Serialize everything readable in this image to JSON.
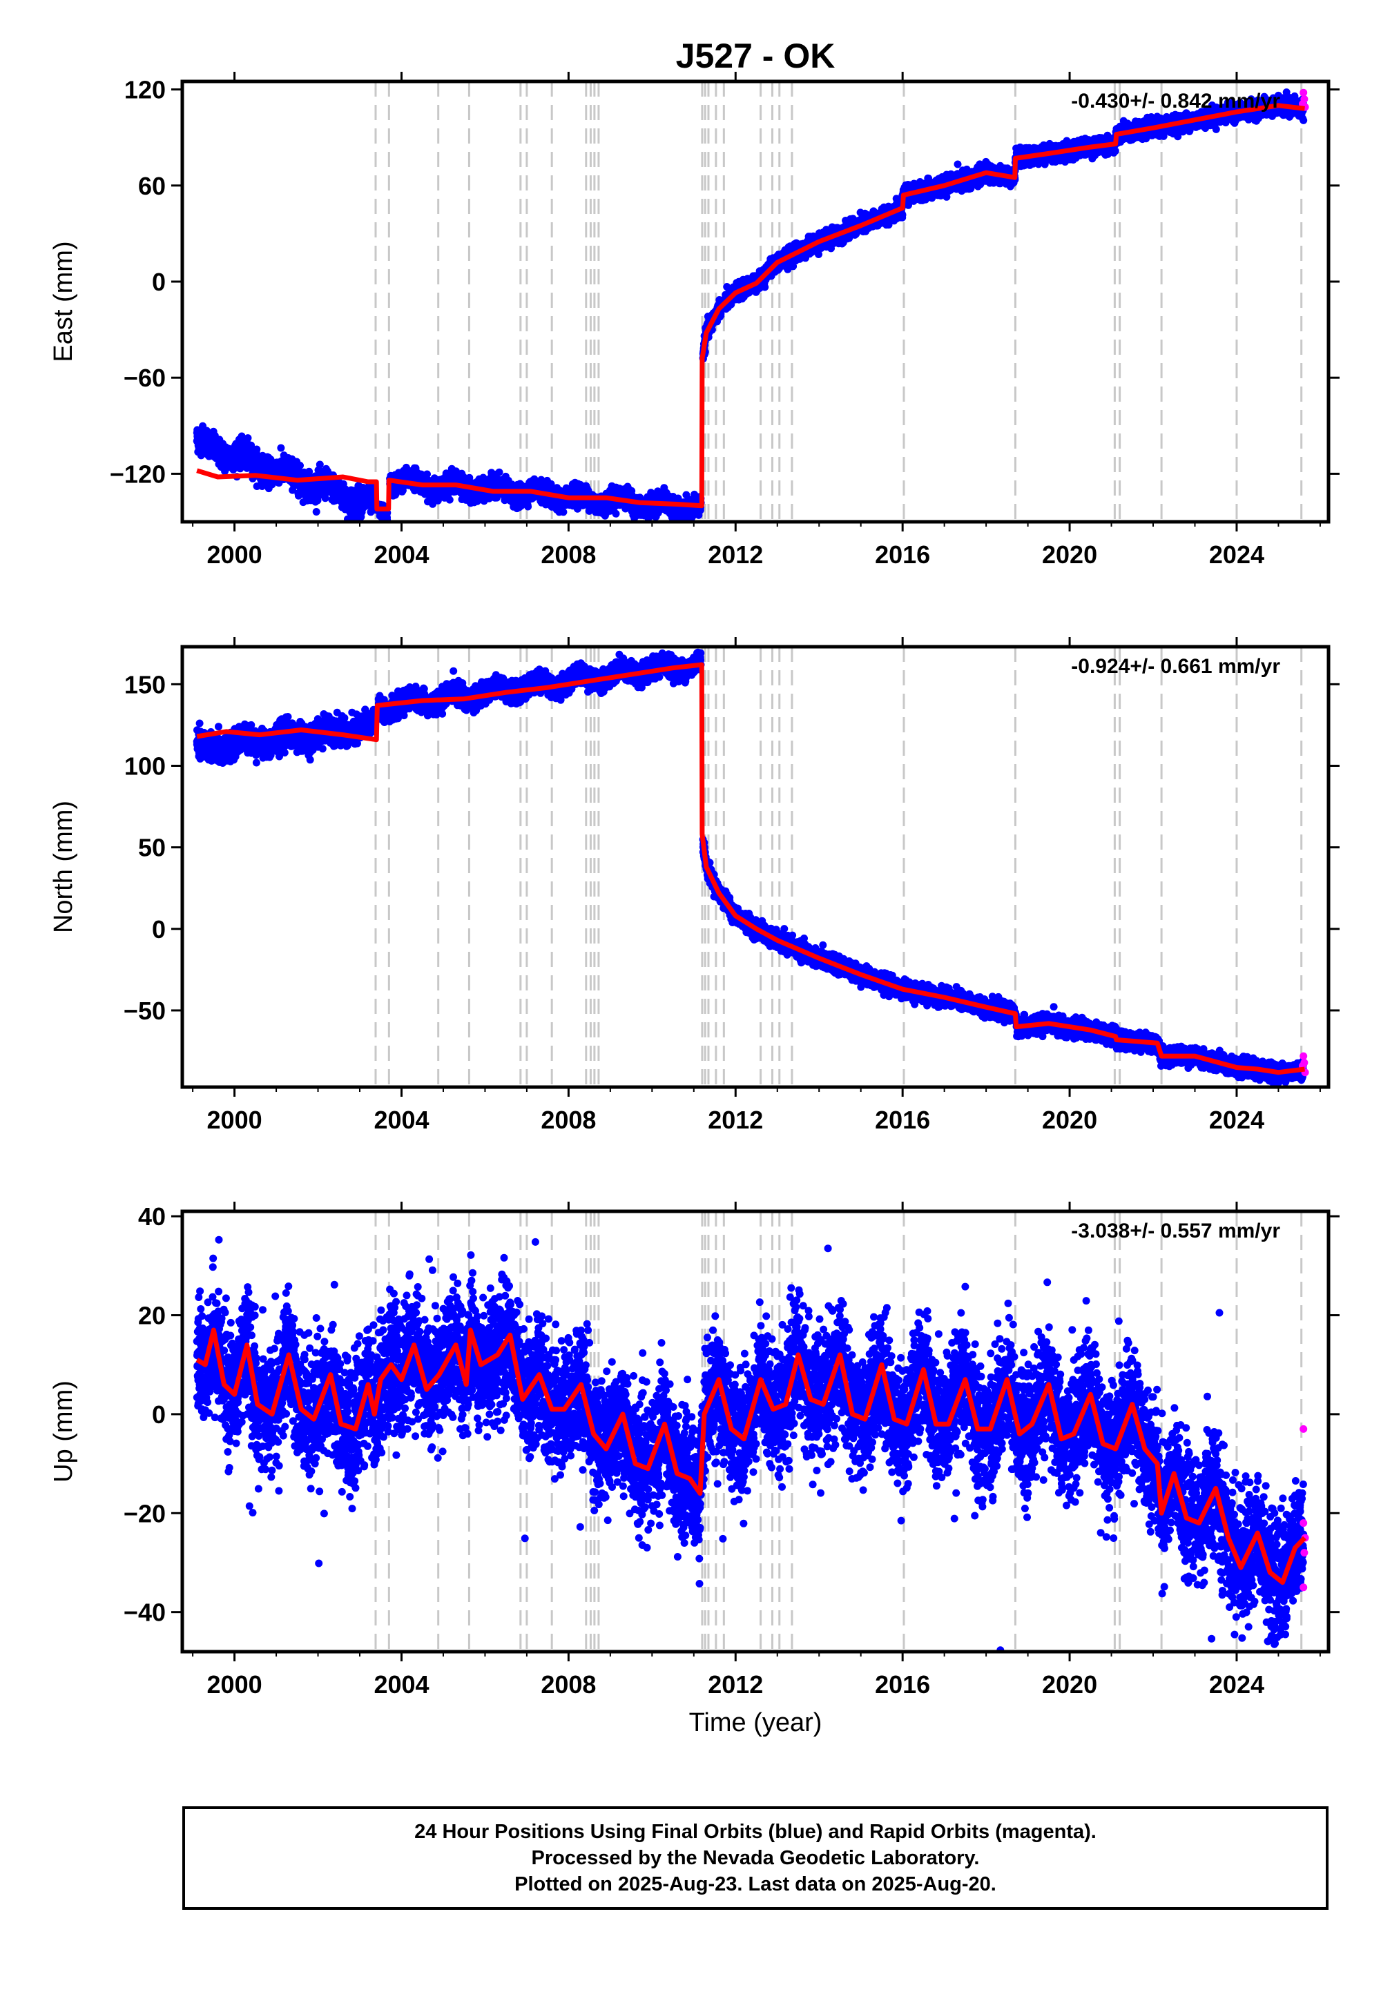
{
  "title": "J527 - OK",
  "xlabel": "Time (year)",
  "colors": {
    "final_orbits": "#0000ff",
    "rapid_orbits": "#ff00ff",
    "model": "#ff0000",
    "event_lines": "#c8c8c8",
    "frame": "#000000"
  },
  "caption": {
    "line1": "24 Hour Positions Using Final Orbits (blue) and Rapid Orbits (magenta).",
    "line2": "Processed by the Nevada Geodetic Laboratory.",
    "line3": "Plotted on 2025-Aug-23. Last data on 2025-Aug-20."
  },
  "chart_data": [
    {
      "type": "scatter",
      "component": "east",
      "ylabel": "East (mm)",
      "rate_label": "-0.430+/- 0.842 mm/yr",
      "xlim": [
        1998.75,
        2026.2
      ],
      "ylim": [
        -150,
        125
      ],
      "xticks": [
        2000,
        2004,
        2008,
        2012,
        2016,
        2020,
        2024
      ],
      "yticks": [
        -120,
        -60,
        0,
        60,
        120
      ],
      "grid": false,
      "event_lines": [
        2003.38,
        2003.7,
        2004.88,
        2005.62,
        2006.85,
        2007.0,
        2007.6,
        2008.42,
        2008.53,
        2008.62,
        2008.72,
        2011.2,
        2011.27,
        2011.35,
        2011.53,
        2011.72,
        2012.6,
        2012.88,
        2013.05,
        2013.35,
        2016.03,
        2018.7,
        2021.08,
        2021.2,
        2022.2,
        2024.0,
        2025.55
      ],
      "model": [
        [
          1999.1,
          -118
        ],
        [
          1999.6,
          -122
        ],
        [
          2000.5,
          -121
        ],
        [
          2001.5,
          -124
        ],
        [
          2002.6,
          -122
        ],
        [
          2003.2,
          -125
        ],
        [
          2003.4,
          -125
        ],
        [
          2003.41,
          -142
        ],
        [
          2003.69,
          -142
        ],
        [
          2003.7,
          -124
        ],
        [
          2004.5,
          -127
        ],
        [
          2005.3,
          -127
        ],
        [
          2006.2,
          -131
        ],
        [
          2007.1,
          -131
        ],
        [
          2008.0,
          -135
        ],
        [
          2008.9,
          -135
        ],
        [
          2009.7,
          -138
        ],
        [
          2010.6,
          -139
        ],
        [
          2011.19,
          -140
        ],
        [
          2011.2,
          -48
        ],
        [
          2011.3,
          -32
        ],
        [
          2011.6,
          -17
        ],
        [
          2012.0,
          -7
        ],
        [
          2012.5,
          -1
        ],
        [
          2013.0,
          12
        ],
        [
          2014.0,
          25
        ],
        [
          2015.0,
          35
        ],
        [
          2016.0,
          46
        ],
        [
          2016.02,
          54
        ],
        [
          2017.0,
          60
        ],
        [
          2018.0,
          68
        ],
        [
          2018.69,
          65
        ],
        [
          2018.7,
          77
        ],
        [
          2019.5,
          80
        ],
        [
          2020.5,
          84
        ],
        [
          2021.1,
          86
        ],
        [
          2021.12,
          92
        ],
        [
          2022.0,
          96
        ],
        [
          2023.0,
          101
        ],
        [
          2024.0,
          106
        ],
        [
          2025.0,
          110
        ],
        [
          2025.63,
          108
        ]
      ],
      "series": [
        {
          "name": "Final Orbits",
          "segments": [
            {
              "x0": 1999.1,
              "x1": 2003.35,
              "y0": -100,
              "y1": -140,
              "noise": 4
            },
            {
              "x0": 2003.45,
              "x1": 2003.66,
              "y0": -143,
              "y1": -143,
              "noise": 2
            },
            {
              "x0": 2003.72,
              "x1": 2011.17,
              "y0": -124,
              "y1": -142,
              "noise": 3
            },
            {
              "x0": 2011.22,
              "x1": 2025.6,
              "y0": 0,
              "y1": 0,
              "noise": 2.5,
              "follow_model": true
            }
          ]
        },
        {
          "name": "Rapid Orbits",
          "points": [
            [
              2025.58,
              111
            ],
            [
              2025.6,
              118
            ],
            [
              2025.62,
              114
            ],
            [
              2025.64,
              109
            ]
          ]
        }
      ]
    },
    {
      "type": "scatter",
      "component": "north",
      "ylabel": "North (mm)",
      "rate_label": "-0.924+/- 0.661 mm/yr",
      "xlim": [
        1998.75,
        2026.2
      ],
      "ylim": [
        -97,
        173
      ],
      "xticks": [
        2000,
        2004,
        2008,
        2012,
        2016,
        2020,
        2024
      ],
      "yticks": [
        -50,
        0,
        50,
        100,
        150
      ],
      "grid": false,
      "event_lines": [
        2003.38,
        2003.7,
        2004.88,
        2005.62,
        2006.85,
        2007.0,
        2007.6,
        2008.42,
        2008.53,
        2008.62,
        2008.72,
        2011.2,
        2011.27,
        2011.35,
        2011.53,
        2011.72,
        2012.6,
        2012.88,
        2013.05,
        2013.35,
        2016.03,
        2018.7,
        2021.08,
        2021.2,
        2022.2,
        2024.0,
        2025.55
      ],
      "model": [
        [
          1999.1,
          118
        ],
        [
          1999.8,
          121
        ],
        [
          2000.6,
          119
        ],
        [
          2001.6,
          122
        ],
        [
          2002.6,
          119
        ],
        [
          2003.4,
          116
        ],
        [
          2003.42,
          137
        ],
        [
          2004.5,
          140
        ],
        [
          2005.5,
          141
        ],
        [
          2006.5,
          145
        ],
        [
          2007.5,
          148
        ],
        [
          2008.5,
          152
        ],
        [
          2009.5,
          156
        ],
        [
          2010.5,
          160
        ],
        [
          2011.19,
          162
        ],
        [
          2011.2,
          58
        ],
        [
          2011.3,
          38
        ],
        [
          2011.6,
          22
        ],
        [
          2012.0,
          8
        ],
        [
          2012.5,
          0
        ],
        [
          2013.0,
          -7
        ],
        [
          2014.0,
          -18
        ],
        [
          2015.0,
          -28
        ],
        [
          2016.0,
          -37
        ],
        [
          2017.0,
          -42
        ],
        [
          2018.0,
          -48
        ],
        [
          2018.7,
          -52
        ],
        [
          2018.72,
          -60
        ],
        [
          2019.5,
          -58
        ],
        [
          2020.5,
          -62
        ],
        [
          2021.1,
          -66
        ],
        [
          2021.12,
          -68
        ],
        [
          2022.1,
          -70
        ],
        [
          2022.2,
          -78
        ],
        [
          2023.0,
          -78
        ],
        [
          2024.0,
          -85
        ],
        [
          2024.5,
          -86
        ],
        [
          2025.0,
          -88
        ],
        [
          2025.63,
          -86
        ]
      ],
      "series": [
        {
          "name": "Final Orbits",
          "segments": [
            {
              "x0": 1999.1,
              "x1": 2003.35,
              "y0": 110,
              "y1": 124,
              "noise": 4
            },
            {
              "x0": 2003.45,
              "x1": 2011.17,
              "y0": 136,
              "y1": 163,
              "noise": 3
            },
            {
              "x0": 2011.22,
              "x1": 2025.6,
              "y0": 0,
              "y1": 0,
              "noise": 2.5,
              "follow_model": true
            }
          ]
        },
        {
          "name": "Rapid Orbits",
          "points": [
            [
              2025.58,
              -84
            ],
            [
              2025.6,
              -78
            ],
            [
              2025.62,
              -82
            ],
            [
              2025.64,
              -88
            ]
          ]
        }
      ]
    },
    {
      "type": "scatter",
      "component": "up",
      "ylabel": "Up (mm)",
      "rate_label": "-3.038+/- 0.557 mm/yr",
      "xlim": [
        1998.75,
        2026.2
      ],
      "ylim": [
        -48,
        41
      ],
      "xticks": [
        2000,
        2004,
        2008,
        2012,
        2016,
        2020,
        2024
      ],
      "yticks": [
        -40,
        -20,
        0,
        20,
        40
      ],
      "grid": false,
      "event_lines": [
        2003.38,
        2003.7,
        2004.88,
        2005.62,
        2006.85,
        2007.0,
        2007.6,
        2008.42,
        2008.53,
        2008.62,
        2008.72,
        2011.2,
        2011.27,
        2011.35,
        2011.53,
        2011.72,
        2012.6,
        2012.88,
        2013.05,
        2013.35,
        2016.03,
        2018.7,
        2021.08,
        2021.2,
        2022.2,
        2024.0,
        2025.55
      ],
      "model": [
        [
          1999.1,
          11
        ],
        [
          1999.3,
          10
        ],
        [
          1999.5,
          17
        ],
        [
          1999.75,
          6
        ],
        [
          2000.0,
          4
        ],
        [
          2000.3,
          14
        ],
        [
          2000.55,
          2
        ],
        [
          2000.9,
          0
        ],
        [
          2001.3,
          12
        ],
        [
          2001.6,
          1
        ],
        [
          2001.9,
          -1
        ],
        [
          2002.3,
          8
        ],
        [
          2002.55,
          -2
        ],
        [
          2002.9,
          -3
        ],
        [
          2003.2,
          6
        ],
        [
          2003.35,
          0
        ],
        [
          2003.5,
          7
        ],
        [
          2003.75,
          10
        ],
        [
          2004.0,
          7
        ],
        [
          2004.3,
          14
        ],
        [
          2004.6,
          5
        ],
        [
          2004.9,
          8
        ],
        [
          2005.3,
          14
        ],
        [
          2005.55,
          6
        ],
        [
          2005.65,
          17
        ],
        [
          2005.9,
          10
        ],
        [
          2006.3,
          12
        ],
        [
          2006.6,
          16
        ],
        [
          2006.9,
          3
        ],
        [
          2007.3,
          8
        ],
        [
          2007.6,
          1
        ],
        [
          2007.9,
          1
        ],
        [
          2008.3,
          6
        ],
        [
          2008.6,
          -4
        ],
        [
          2008.9,
          -7
        ],
        [
          2009.3,
          0
        ],
        [
          2009.6,
          -10
        ],
        [
          2009.9,
          -11
        ],
        [
          2010.3,
          -2
        ],
        [
          2010.6,
          -12
        ],
        [
          2010.9,
          -13
        ],
        [
          2011.15,
          -16
        ],
        [
          2011.25,
          0
        ],
        [
          2011.6,
          7
        ],
        [
          2011.9,
          -3
        ],
        [
          2012.2,
          -5
        ],
        [
          2012.6,
          7
        ],
        [
          2012.9,
          1
        ],
        [
          2013.2,
          2
        ],
        [
          2013.5,
          12
        ],
        [
          2013.8,
          3
        ],
        [
          2014.1,
          2
        ],
        [
          2014.5,
          12
        ],
        [
          2014.8,
          0
        ],
        [
          2015.1,
          -1
        ],
        [
          2015.5,
          10
        ],
        [
          2015.8,
          -1
        ],
        [
          2016.1,
          -2
        ],
        [
          2016.5,
          9
        ],
        [
          2016.8,
          -2
        ],
        [
          2017.1,
          -2
        ],
        [
          2017.5,
          7
        ],
        [
          2017.8,
          -3
        ],
        [
          2018.1,
          -3
        ],
        [
          2018.5,
          7
        ],
        [
          2018.8,
          -4
        ],
        [
          2019.1,
          -2
        ],
        [
          2019.5,
          6
        ],
        [
          2019.8,
          -5
        ],
        [
          2020.1,
          -4
        ],
        [
          2020.5,
          4
        ],
        [
          2020.8,
          -6
        ],
        [
          2021.1,
          -7
        ],
        [
          2021.5,
          2
        ],
        [
          2021.8,
          -7
        ],
        [
          2022.1,
          -10
        ],
        [
          2022.2,
          -20
        ],
        [
          2022.5,
          -12
        ],
        [
          2022.8,
          -21
        ],
        [
          2023.1,
          -22
        ],
        [
          2023.5,
          -15
        ],
        [
          2023.8,
          -25
        ],
        [
          2024.1,
          -31
        ],
        [
          2024.5,
          -24
        ],
        [
          2024.8,
          -32
        ],
        [
          2025.1,
          -34
        ],
        [
          2025.4,
          -27
        ],
        [
          2025.63,
          -25
        ]
      ],
      "series": [
        {
          "name": "Final Orbits",
          "segments": [
            {
              "x0": 1999.1,
              "x1": 2025.6,
              "y0": 0,
              "y1": 0,
              "noise": 6,
              "follow_model": true
            }
          ]
        },
        {
          "name": "Rapid Orbits",
          "points": [
            [
              2025.6,
              -3
            ],
            [
              2025.6,
              -22
            ],
            [
              2025.62,
              -28
            ],
            [
              2025.6,
              -35
            ],
            [
              2025.64,
              -25
            ]
          ]
        }
      ]
    }
  ]
}
